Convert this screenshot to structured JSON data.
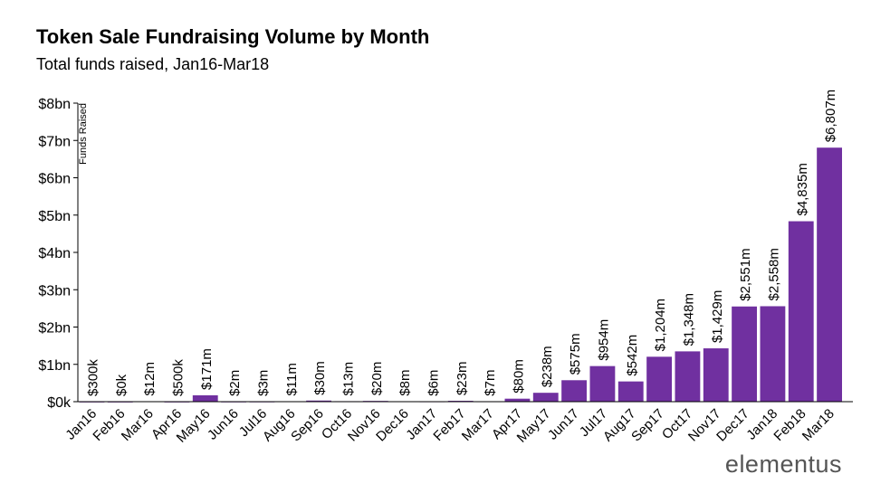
{
  "chart_data": {
    "type": "bar",
    "title": "Token Sale Fundraising Volume by Month",
    "subtitle": "Total funds raised, Jan16-Mar18",
    "ylabel": "Funds Raised",
    "xlabel": "",
    "units": "$m",
    "ylim": [
      0,
      8000
    ],
    "y_ticks": [
      0,
      1000,
      2000,
      3000,
      4000,
      5000,
      6000,
      7000,
      8000
    ],
    "y_tick_labels": [
      "$0k",
      "$1bn",
      "$2bn",
      "$3bn",
      "$4bn",
      "$5bn",
      "$6bn",
      "$7bn",
      "$8bn"
    ],
    "grid": false,
    "bar_color": "#7030a0",
    "categories": [
      "Jan16",
      "Feb16",
      "Mar16",
      "Apr16",
      "May16",
      "Jun16",
      "Jul16",
      "Aug16",
      "Sep16",
      "Oct16",
      "Nov16",
      "Dec16",
      "Jan17",
      "Feb17",
      "Mar17",
      "Apr17",
      "May17",
      "Jun17",
      "Jul17",
      "Aug17",
      "Sep17",
      "Oct17",
      "Nov17",
      "Dec17",
      "Jan18",
      "Feb18",
      "Mar18"
    ],
    "values": [
      0.3,
      0,
      12,
      0.5,
      171,
      2,
      3,
      11,
      30,
      13,
      20,
      8,
      6,
      23,
      7,
      80,
      238,
      575,
      954,
      542,
      1204,
      1348,
      1429,
      2551,
      2558,
      4835,
      6807
    ],
    "data_labels": [
      "$300k",
      "$0k",
      "$12m",
      "$500k",
      "$171m",
      "$2m",
      "$3m",
      "$11m",
      "$30m",
      "$13m",
      "$20m",
      "$8m",
      "$6m",
      "$23m",
      "$7m",
      "$80m",
      "$238m",
      "$575m",
      "$954m",
      "$542m",
      "$1,204m",
      "$1,348m",
      "$1,429m",
      "$2,551m",
      "$2,558m",
      "$4,835m",
      "$6,807m"
    ]
  },
  "logo": "elementus"
}
